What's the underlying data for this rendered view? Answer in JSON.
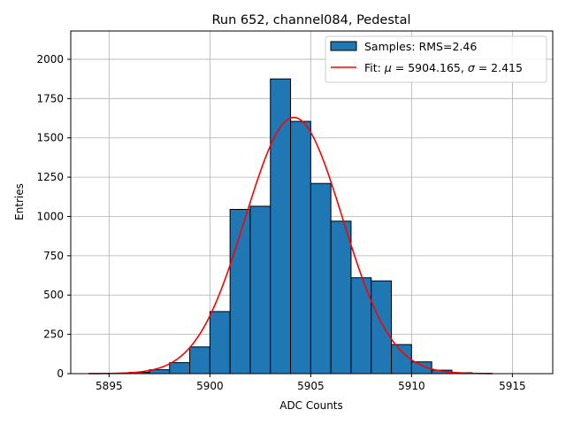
{
  "chart_data": {
    "type": "bar",
    "title": "Run 652, channel084, Pedestal",
    "xlabel": "ADC Counts",
    "ylabel": "Entries",
    "xlim": [
      5893.1,
      5917.0
    ],
    "ylim": [
      0,
      2180
    ],
    "xticks": [
      5895,
      5900,
      5905,
      5910,
      5915
    ],
    "yticks": [
      0,
      250,
      500,
      750,
      1000,
      1250,
      1500,
      1750,
      2000
    ],
    "grid": true,
    "legend_position": "top-right",
    "histogram": {
      "name": "Samples: RMS=2.46",
      "color": "#1f77b4",
      "edge_color": "#000000",
      "bin_edges": [
        5894,
        5895,
        5896,
        5897,
        5898,
        5899,
        5900,
        5901,
        5902,
        5903,
        5904,
        5905,
        5906,
        5907,
        5908,
        5909,
        5910,
        5911,
        5912,
        5913,
        5914,
        5915,
        5916
      ],
      "counts": [
        1,
        2,
        8,
        25,
        70,
        170,
        395,
        1045,
        1065,
        1875,
        1605,
        1210,
        970,
        610,
        590,
        185,
        75,
        22,
        6,
        2,
        0,
        0
      ]
    },
    "fit": {
      "name_prefix": "Fit: ",
      "name_mu_label": "μ",
      "name_mid": " = 5904.165, ",
      "name_sigma_label": "σ",
      "name_suffix": " = 2.415",
      "color": "#ff0000",
      "mu": 5904.165,
      "sigma": 2.415,
      "amplitude": 1630,
      "x_range": [
        5894,
        5914
      ]
    }
  }
}
